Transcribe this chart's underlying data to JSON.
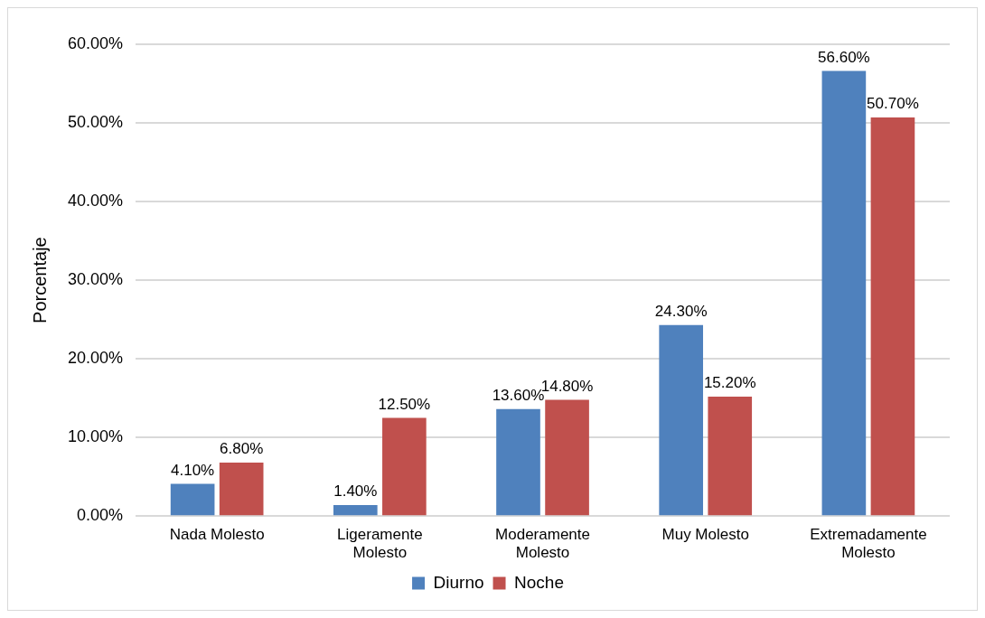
{
  "chart_data": {
    "type": "bar",
    "ylabel": "Porcentaje",
    "categories": [
      "Nada Molesto",
      "Ligeramente Molesto",
      "Moderamente Molesto",
      "Muy Molesto",
      "Extremadamente Molesto"
    ],
    "series": [
      {
        "name": "Diurno",
        "color": "#4f81bd",
        "values": [
          4.1,
          1.4,
          13.6,
          24.3,
          56.6
        ],
        "value_labels": [
          "4.10%",
          "1.40%",
          "13.60%",
          "24.30%",
          "56.60%"
        ]
      },
      {
        "name": "Noche",
        "color": "#c0504d",
        "values": [
          6.8,
          12.5,
          14.8,
          15.2,
          50.7
        ],
        "value_labels": [
          "6.80%",
          "12.50%",
          "14.80%",
          "15.20%",
          "50.70%"
        ]
      }
    ],
    "ylim": [
      0,
      60
    ],
    "yticks": [
      {
        "value": 0,
        "label": "0.00%"
      },
      {
        "value": 10,
        "label": "10.00%"
      },
      {
        "value": 20,
        "label": "20.00%"
      },
      {
        "value": 30,
        "label": "30.00%"
      },
      {
        "value": 40,
        "label": "40.00%"
      },
      {
        "value": 50,
        "label": "50.00%"
      },
      {
        "value": 60,
        "label": "60.00%"
      }
    ],
    "grid": "y",
    "legend": "bottom"
  }
}
